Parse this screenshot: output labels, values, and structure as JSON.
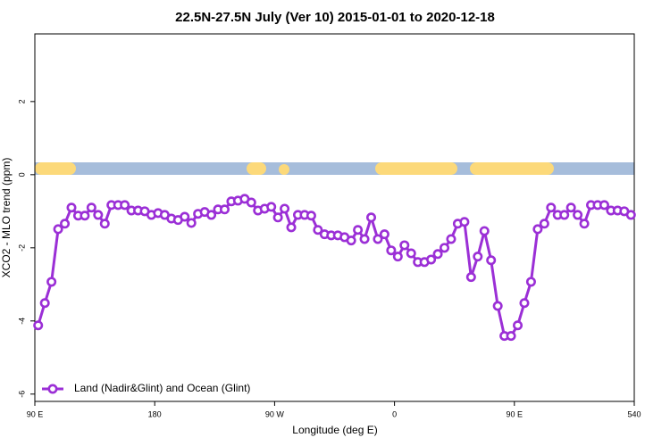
{
  "chart_data": {
    "type": "line",
    "title": "22.5N-27.5N July (Ver 10)   2015-01-01 to 2020-12-18",
    "x_label": "Longitude (deg E)",
    "y_label": "XCO2 - MLO trend (ppm)",
    "xlim": [
      90,
      540
    ],
    "ylim": [
      -6.2,
      3.85
    ],
    "xticks": [
      {
        "value": 90,
        "label": "90 E"
      },
      180,
      {
        "value": 270,
        "label": "90 W"
      },
      {
        "value": 360,
        "label": "0"
      },
      {
        "value": 450,
        "label": "90 E"
      },
      540
    ],
    "yticks": [
      -6,
      -4,
      -2,
      0,
      2
    ],
    "legend_position": "bottom-left",
    "x": [
      92.5,
      97.5,
      102.5,
      107.5,
      112.5,
      117.5,
      122.5,
      127.5,
      132.5,
      137.5,
      142.5,
      147.5,
      152.5,
      157.5,
      162.5,
      167.5,
      172.5,
      177.5,
      182.5,
      187.5,
      192.5,
      197.5,
      202.5,
      207.5,
      212.5,
      217.5,
      222.5,
      227.5,
      232.5,
      237.5,
      242.5,
      247.5,
      252.5,
      257.5,
      262.5,
      267.5,
      272.5,
      277.5,
      282.5,
      287.5,
      292.5,
      297.5,
      302.5,
      307.5,
      312.5,
      317.5,
      322.5,
      327.5,
      332.5,
      337.5,
      342.5,
      347.5,
      352.5,
      357.5,
      362.5,
      367.5,
      372.5,
      377.5,
      382.5,
      387.5,
      392.5,
      397.5,
      402.5,
      407.5,
      412.5,
      417.5,
      422.5,
      427.5,
      432.5,
      437.5,
      442.5,
      447.5,
      452.5,
      457.5,
      462.5,
      467.5,
      472.5,
      477.5,
      482.5,
      487.5,
      492.5,
      497.5,
      502.5,
      507.5,
      512.5,
      517.5,
      522.5,
      527.5,
      532.5,
      537.5
    ],
    "series": [
      {
        "name": "Land (Nadir&Glint) and Ocean (Glint)",
        "color": "#9b2fd6",
        "values": [
          -4.12,
          -3.51,
          -2.93,
          -1.49,
          -1.34,
          -0.9,
          -1.12,
          -1.12,
          -0.9,
          -1.1,
          -1.34,
          -0.83,
          -0.83,
          -0.83,
          -0.98,
          -0.98,
          -1.0,
          -1.1,
          -1.05,
          -1.1,
          -1.2,
          -1.24,
          -1.15,
          -1.32,
          -1.07,
          -1.02,
          -1.1,
          -0.95,
          -0.95,
          -0.73,
          -0.71,
          -0.66,
          -0.76,
          -0.98,
          -0.93,
          -0.88,
          -1.17,
          -0.93,
          -1.44,
          -1.1,
          -1.1,
          -1.12,
          -1.51,
          -1.63,
          -1.66,
          -1.66,
          -1.71,
          -1.8,
          -1.51,
          -1.76,
          -1.17,
          -1.76,
          -1.63,
          -2.07,
          -2.24,
          -1.93,
          -2.15,
          -2.39,
          -2.39,
          -2.32,
          -2.17,
          -2.0,
          -1.76,
          -1.34,
          -1.29,
          -2.8,
          -2.24,
          -1.54,
          -2.34,
          -3.59,
          -4.41,
          -4.41,
          -4.12,
          -3.51,
          -2.93,
          -1.49,
          -1.34,
          -0.9,
          -1.1,
          -1.1,
          -0.9,
          -1.1,
          -1.34,
          -0.83,
          -0.83,
          -0.83,
          -0.98,
          -0.98,
          -1.0,
          -1.1
        ]
      }
    ]
  }
}
